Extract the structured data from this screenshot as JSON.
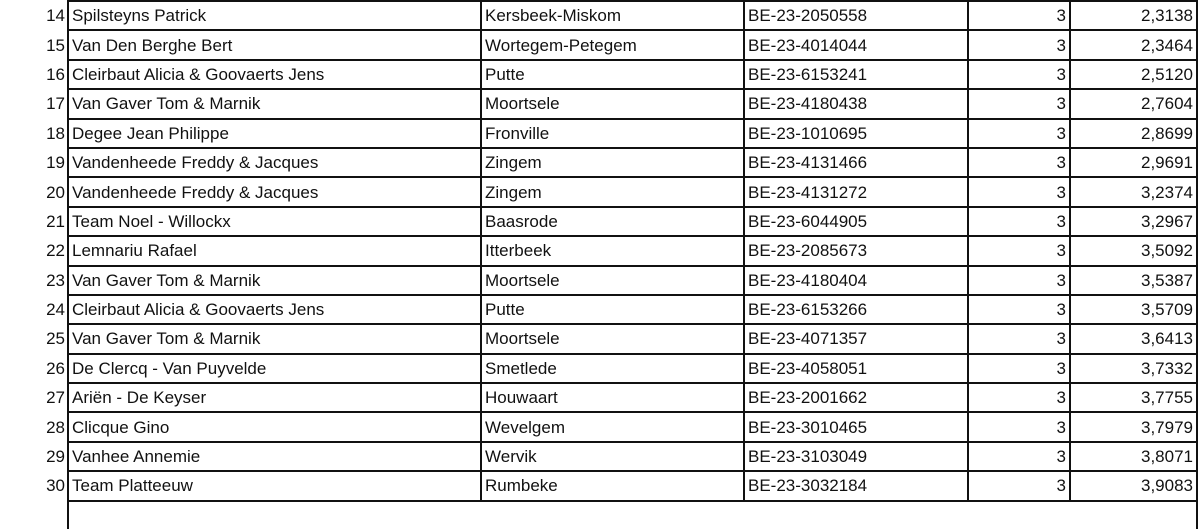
{
  "rows": [
    {
      "rank": "14",
      "name": "Spilsteyns Patrick",
      "city": "Kersbeek-Miskom",
      "ring": "BE-23-2050558",
      "count": "3",
      "value": "2,3138"
    },
    {
      "rank": "15",
      "name": "Van Den Berghe Bert",
      "city": "Wortegem-Petegem",
      "ring": "BE-23-4014044",
      "count": "3",
      "value": "2,3464"
    },
    {
      "rank": "16",
      "name": "Cleirbaut Alicia & Goovaerts Jens",
      "city": "Putte",
      "ring": "BE-23-6153241",
      "count": "3",
      "value": "2,5120"
    },
    {
      "rank": "17",
      "name": "Van Gaver Tom & Marnik",
      "city": "Moortsele",
      "ring": "BE-23-4180438",
      "count": "3",
      "value": "2,7604"
    },
    {
      "rank": "18",
      "name": "Degee Jean Philippe",
      "city": "Fronville",
      "ring": "BE-23-1010695",
      "count": "3",
      "value": "2,8699"
    },
    {
      "rank": "19",
      "name": "Vandenheede Freddy & Jacques",
      "city": "Zingem",
      "ring": "BE-23-4131466",
      "count": "3",
      "value": "2,9691"
    },
    {
      "rank": "20",
      "name": "Vandenheede Freddy & Jacques",
      "city": "Zingem",
      "ring": "BE-23-4131272",
      "count": "3",
      "value": "3,2374"
    },
    {
      "rank": "21",
      "name": "Team Noel - Willockx",
      "city": "Baasrode",
      "ring": "BE-23-6044905",
      "count": "3",
      "value": "3,2967"
    },
    {
      "rank": "22",
      "name": "Lemnariu Rafael",
      "city": "Itterbeek",
      "ring": "BE-23-2085673",
      "count": "3",
      "value": "3,5092"
    },
    {
      "rank": "23",
      "name": "Van Gaver Tom & Marnik",
      "city": "Moortsele",
      "ring": "BE-23-4180404",
      "count": "3",
      "value": "3,5387"
    },
    {
      "rank": "24",
      "name": "Cleirbaut Alicia & Goovaerts Jens",
      "city": "Putte",
      "ring": "BE-23-6153266",
      "count": "3",
      "value": "3,5709"
    },
    {
      "rank": "25",
      "name": "Van Gaver Tom & Marnik",
      "city": "Moortsele",
      "ring": "BE-23-4071357",
      "count": "3",
      "value": "3,6413"
    },
    {
      "rank": "26",
      "name": "De Clercq - Van Puyvelde",
      "city": "Smetlede",
      "ring": "BE-23-4058051",
      "count": "3",
      "value": "3,7332"
    },
    {
      "rank": "27",
      "name": "Ariën - De Keyser",
      "city": "Houwaart",
      "ring": "BE-23-2001662",
      "count": "3",
      "value": "3,7755"
    },
    {
      "rank": "28",
      "name": "Clicque Gino",
      "city": "Wevelgem",
      "ring": "BE-23-3010465",
      "count": "3",
      "value": "3,7979"
    },
    {
      "rank": "29",
      "name": "Vanhee Annemie",
      "city": "Wervik",
      "ring": "BE-23-3103049",
      "count": "3",
      "value": "3,8071"
    },
    {
      "rank": "30",
      "name": "Team Platteeuw",
      "city": "Rumbeke",
      "ring": "BE-23-3032184",
      "count": "3",
      "value": "3,9083"
    }
  ]
}
